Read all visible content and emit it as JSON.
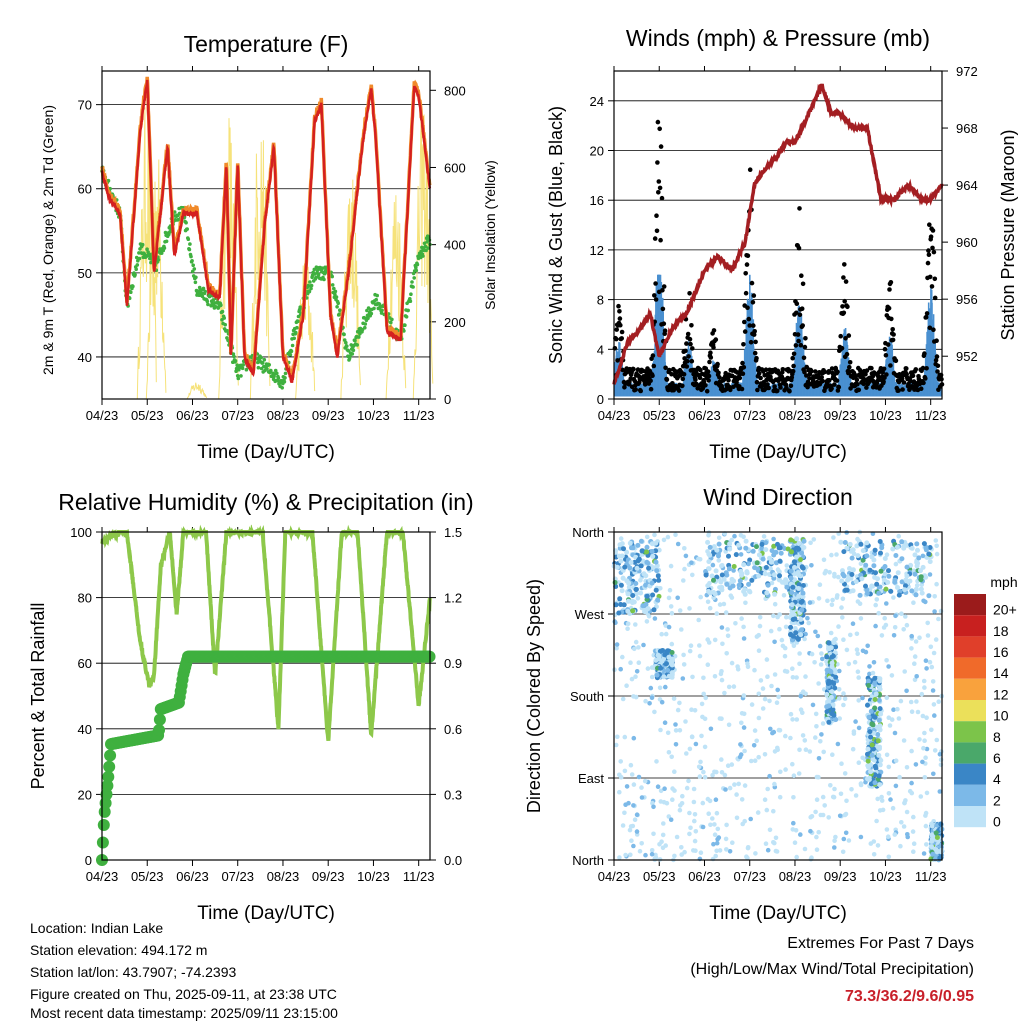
{
  "x_ticks": [
    "04/23",
    "05/23",
    "06/23",
    "07/23",
    "08/23",
    "09/23",
    "10/23",
    "11/23"
  ],
  "x_label": "Time (Day/UTC)",
  "chart_data": [
    {
      "type": "line",
      "title": "Temperature (F)",
      "xlabel": "Time (Day/UTC)",
      "ylabel": "2m & 9m T (Red, Orange) & 2m Td (Green)",
      "y2label": "Solar Insolation (Yellow)",
      "ylim": [
        35,
        74
      ],
      "y2lim": [
        0,
        850
      ],
      "yticks": [
        40,
        50,
        60,
        70
      ],
      "y2ticks": [
        0,
        200,
        400,
        600,
        800
      ],
      "grid": true,
      "colors": {
        "t2m": "#d42020",
        "t9m": "#f08a2a",
        "td": "#3fb03f",
        "solar": "#f6e27a"
      },
      "series": [
        {
          "name": "2m T",
          "x": [
            0,
            0.15,
            0.4,
            0.55,
            0.85,
            1.0,
            1.15,
            1.45,
            1.6,
            1.8,
            2.1,
            2.35,
            2.6,
            2.75,
            2.85,
            3.0,
            3.15,
            3.35,
            3.6,
            3.8,
            4.0,
            4.2,
            4.45,
            4.7,
            4.85,
            5.05,
            5.2,
            5.45,
            5.75,
            5.95,
            6.05,
            6.3,
            6.6,
            6.9,
            7.0,
            7.25
          ],
          "values": [
            62,
            59,
            57,
            46,
            67,
            73,
            50,
            65,
            52,
            57,
            57,
            48,
            47,
            63,
            40,
            63,
            40,
            38,
            56,
            65,
            40,
            37,
            45,
            68,
            70,
            45,
            40,
            50,
            65,
            72,
            66,
            43,
            42,
            72,
            71,
            60
          ]
        },
        {
          "name": "2m Td",
          "x": [
            0,
            0.4,
            0.55,
            0.85,
            1.0,
            1.2,
            1.6,
            1.8,
            2.1,
            2.35,
            2.6,
            3.0,
            3.35,
            4.0,
            4.35,
            4.7,
            5.05,
            5.45,
            6.05,
            6.6,
            7.0,
            7.25
          ],
          "values": [
            62,
            57,
            46,
            53,
            52,
            51,
            57,
            57,
            48,
            47,
            46,
            38,
            40,
            37,
            45,
            50,
            50,
            40,
            47,
            42,
            52,
            54
          ]
        },
        {
          "name": "Solar Insolation",
          "peaks_day": [
            1.0,
            1.2,
            2.1,
            2.8,
            3.5,
            4.5,
            5.5,
            6.5,
            7.1
          ],
          "peak_values": [
            820,
            700,
            50,
            780,
            820,
            400,
            650,
            600,
            800
          ]
        }
      ]
    },
    {
      "type": "scatter",
      "title": "Winds (mph) & Pressure (mb)",
      "xlabel": "Time (Day/UTC)",
      "ylabel": "Sonic Wind & Gust (Blue, Black)",
      "y2label": "Station Pressure (Maroon)",
      "ylim": [
        0,
        26.4
      ],
      "y2lim": [
        949,
        972
      ],
      "yticks": [
        0,
        4,
        8,
        12,
        16,
        20,
        24
      ],
      "y2ticks": [
        952,
        956,
        960,
        964,
        968,
        972
      ],
      "grid": true,
      "colors": {
        "wind": "#4a90d0",
        "gust": "#000000",
        "pressure": "#a31e22"
      },
      "series": [
        {
          "name": "Station Pressure",
          "x": [
            0,
            0.3,
            0.6,
            0.8,
            1.0,
            1.3,
            1.6,
            2.0,
            2.3,
            2.6,
            2.9,
            3.1,
            3.3,
            3.6,
            3.8,
            4.0,
            4.3,
            4.6,
            4.8,
            5.0,
            5.3,
            5.6,
            5.9,
            6.2,
            6.5,
            6.8,
            7.0,
            7.25
          ],
          "values": [
            950,
            953,
            954,
            955,
            952,
            954,
            955,
            958,
            959,
            958,
            960,
            964,
            965,
            966,
            967,
            967,
            969,
            971,
            969,
            969,
            968,
            968,
            963,
            963,
            964,
            963,
            963,
            964
          ]
        },
        {
          "name": "Gust peaks",
          "peaks_day": [
            0.1,
            1.0,
            1.65,
            2.2,
            3.0,
            4.1,
            5.1,
            6.1,
            7.0
          ],
          "peak_values": [
            9,
            24.5,
            9,
            6,
            19,
            16,
            11,
            10,
            17
          ]
        }
      ]
    },
    {
      "type": "line",
      "title": "Relative Humidity (%) & Precipitation (in)",
      "xlabel": "Time (Day/UTC)",
      "ylabel": "Percent & Total Rainfall",
      "ylim": [
        0,
        100
      ],
      "y2lim": [
        0,
        1.5
      ],
      "yticks": [
        0,
        20,
        40,
        60,
        80,
        100
      ],
      "y2ticks": [
        "0.0",
        "0.3",
        "0.6",
        "0.9",
        "1.2",
        "1.5"
      ],
      "grid": true,
      "colors": {
        "rh": "#8dc84a",
        "precip": "#3fb03f"
      },
      "series": [
        {
          "name": "RH",
          "x": [
            0,
            0.1,
            0.4,
            0.55,
            0.85,
            1.05,
            1.15,
            1.3,
            1.5,
            1.65,
            1.8,
            2.0,
            2.3,
            2.5,
            2.75,
            3.05,
            3.35,
            3.55,
            3.9,
            4.05,
            4.3,
            4.65,
            5.0,
            5.3,
            5.65,
            5.95,
            6.3,
            6.65,
            7.0,
            7.25
          ],
          "values": [
            97,
            98,
            100,
            100,
            66,
            53,
            56,
            90,
            100,
            75,
            100,
            100,
            100,
            56,
            100,
            100,
            100,
            100,
            40,
            100,
            100,
            100,
            36,
            100,
            100,
            38,
            100,
            100,
            47,
            80
          ]
        },
        {
          "name": "Total Precipitation",
          "x": [
            0,
            0.05,
            0.15,
            0.2,
            1.25,
            1.3,
            1.7,
            1.8,
            1.9,
            7.25
          ],
          "values": [
            0.0,
            0.2,
            0.4,
            0.53,
            0.57,
            0.69,
            0.72,
            0.85,
            0.93,
            0.93
          ]
        }
      ]
    },
    {
      "type": "scatter",
      "title": "Wind Direction",
      "xlabel": "Time (Day/UTC)",
      "ylabel": "Direction (Colored By Speed)",
      "ylim": [
        0,
        360
      ],
      "yticks": [
        "North",
        "East",
        "South",
        "West",
        "North"
      ],
      "grid": true,
      "legend": {
        "position": "right",
        "unit": "mph",
        "levels": [
          "20+",
          "18",
          "16",
          "14",
          "12",
          "10",
          "8",
          "6",
          "4",
          "2",
          "0"
        ],
        "colors": [
          "#9b1b1b",
          "#c8201f",
          "#e03f2a",
          "#f06a2a",
          "#f9a23d",
          "#ebe05a",
          "#7cc44a",
          "#4aa86a",
          "#3a86c6",
          "#7cb9e8",
          "#bfe3f7"
        ]
      },
      "clusters": [
        {
          "day_from": 0.0,
          "day_to": 1.0,
          "dir_from": 270,
          "dir_to": 350
        },
        {
          "day_from": 0.9,
          "day_to": 1.3,
          "dir_from": 200,
          "dir_to": 230
        },
        {
          "day_from": 2.0,
          "day_to": 4.0,
          "dir_from": 290,
          "dir_to": 350
        },
        {
          "day_from": 3.9,
          "day_to": 4.2,
          "dir_from": 240,
          "dir_to": 355
        },
        {
          "day_from": 4.7,
          "day_to": 4.9,
          "dir_from": 150,
          "dir_to": 240
        },
        {
          "day_from": 5.0,
          "day_to": 7.0,
          "dir_from": 290,
          "dir_to": 350
        },
        {
          "day_from": 5.6,
          "day_to": 5.9,
          "dir_from": 80,
          "dir_to": 200
        },
        {
          "day_from": 7.0,
          "day_to": 7.25,
          "dir_from": 0,
          "dir_to": 40
        }
      ]
    }
  ],
  "info": {
    "location": "Location: Indian Lake",
    "elevation": "Station elevation: 494.172 m",
    "latlon": "Station lat/lon: 43.7907; -74.2393",
    "created": "Figure created on Thu, 2025-09-11, at 23:38 UTC",
    "recent": "Most recent data timestamp: 2025/09/11 23:15:00"
  },
  "extremes": {
    "title": "Extremes For Past 7 Days",
    "subtitle": "(High/Low/Max Wind/Total Precipitation)",
    "values": "73.3/36.2/9.6/0.95",
    "values_color": "#c8202a"
  }
}
